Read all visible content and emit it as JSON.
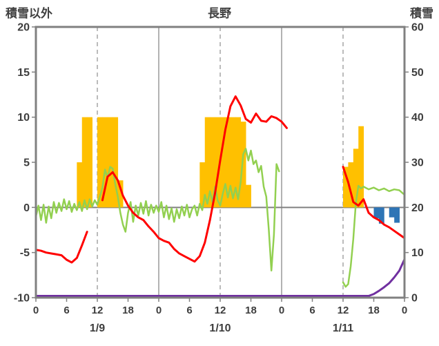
{
  "chart_data": {
    "type": "line",
    "title": "長野",
    "left_axis": {
      "title": "積雪以外",
      "min": -10,
      "max": 20,
      "ticks": [
        20,
        15,
        10,
        5,
        0,
        -5,
        -10
      ]
    },
    "right_axis": {
      "title": "積雪",
      "min": 0,
      "max": 60,
      "ticks": [
        60,
        50,
        40,
        30,
        20,
        10,
        0
      ]
    },
    "x_axis": {
      "hours_total": 72,
      "tick_every": 6,
      "tick_labels": [
        "0",
        "6",
        "12",
        "18",
        "0",
        "6",
        "12",
        "18",
        "0",
        "6",
        "12",
        "18",
        "0"
      ],
      "day_labels": [
        "1/9",
        "1/10",
        "1/11"
      ],
      "solid_gridlines_hours": [
        24,
        48
      ],
      "dashed_gridlines_hours": [
        12,
        36,
        60
      ]
    },
    "colors": {
      "border": "#808080",
      "grid": "#9e9e9e",
      "zero_line": "#808080",
      "text": "#3d3d3d",
      "background": "#ffffff"
    },
    "series": [
      {
        "id": "orange-bars",
        "type": "bar",
        "axis": "left",
        "color": "#FFC000",
        "bars": [
          [
            8,
            5
          ],
          [
            9,
            10
          ],
          [
            10,
            10
          ],
          [
            12,
            10
          ],
          [
            13,
            10
          ],
          [
            14,
            10
          ],
          [
            15,
            10
          ],
          [
            16,
            3
          ],
          [
            32,
            5
          ],
          [
            33,
            10
          ],
          [
            34,
            10
          ],
          [
            35,
            10
          ],
          [
            36,
            10
          ],
          [
            37,
            10
          ],
          [
            38,
            10
          ],
          [
            39,
            10
          ],
          [
            40,
            9.5
          ],
          [
            41,
            2.5
          ],
          [
            60,
            4.5
          ],
          [
            61,
            5
          ],
          [
            62,
            6.5
          ],
          [
            63,
            9
          ]
        ]
      },
      {
        "id": "blue-bars",
        "type": "bar",
        "axis": "left",
        "color": "#2E75B6",
        "bars": [
          [
            66,
            -1.2
          ],
          [
            67,
            -1.8
          ],
          [
            69,
            -1.1
          ],
          [
            70,
            -1.7
          ]
        ]
      },
      {
        "id": "green-line",
        "type": "line",
        "axis": "left",
        "color": "#92D050",
        "width": 2.5,
        "points": [
          [
            0,
            -1.0
          ],
          [
            0.5,
            0.2
          ],
          [
            1,
            -1.4
          ],
          [
            1.5,
            0.3
          ],
          [
            2,
            -1.7
          ],
          [
            2.5,
            0.1
          ],
          [
            3,
            -1.2
          ],
          [
            3.5,
            0.6
          ],
          [
            4,
            -0.6
          ],
          [
            4.5,
            0.5
          ],
          [
            5,
            -0.4
          ],
          [
            5.5,
            0.9
          ],
          [
            6,
            -0.2
          ],
          [
            6.5,
            0.7
          ],
          [
            7,
            -0.5
          ],
          [
            7.5,
            0.4
          ],
          [
            8,
            -0.3
          ],
          [
            8.5,
            0.6
          ],
          [
            9,
            -0.4
          ],
          [
            9.5,
            0.8
          ],
          [
            10,
            -0.2
          ],
          [
            10.5,
            0.9
          ],
          [
            11,
            0.1
          ],
          [
            11.5,
            0.8
          ],
          [
            12,
            0.3
          ],
          [
            12.5,
            1.2
          ],
          [
            13,
            2.2
          ],
          [
            13.5,
            4.2
          ],
          [
            14,
            3.3
          ],
          [
            14.5,
            4.5
          ],
          [
            15,
            4.3
          ],
          [
            15.5,
            2.6
          ],
          [
            16,
            1.2
          ],
          [
            16.5,
            -0.6
          ],
          [
            17,
            -1.9
          ],
          [
            17.5,
            -2.7
          ],
          [
            18,
            -0.6
          ],
          [
            18.5,
            0.6
          ],
          [
            19,
            -1.6
          ],
          [
            19.5,
            0.2
          ],
          [
            20,
            -0.9
          ],
          [
            20.5,
            0.5
          ],
          [
            21,
            -0.7
          ],
          [
            21.5,
            0.7
          ],
          [
            22,
            -0.9
          ],
          [
            22.5,
            0.3
          ],
          [
            23,
            -0.6
          ],
          [
            23.5,
            0.2
          ],
          [
            24,
            -0.5
          ],
          [
            24.5,
            0.6
          ],
          [
            25,
            -1.1
          ],
          [
            25.5,
            0.2
          ],
          [
            26,
            -1.3
          ],
          [
            26.5,
            -0.1
          ],
          [
            27,
            -1.6
          ],
          [
            27.5,
            -0.2
          ],
          [
            28,
            -1.2
          ],
          [
            28.5,
            0.1
          ],
          [
            29,
            -0.9
          ],
          [
            29.5,
            0.3
          ],
          [
            30,
            -1.1
          ],
          [
            30.5,
            -0.2
          ],
          [
            31,
            0.2
          ],
          [
            31.5,
            -0.9
          ],
          [
            32,
            0.4
          ],
          [
            32.5,
            -0.3
          ],
          [
            33,
            1.4
          ],
          [
            33.5,
            0.4
          ],
          [
            34,
            1.8
          ],
          [
            34.5,
            0.6
          ],
          [
            35,
            2.3
          ],
          [
            35.5,
            0.8
          ],
          [
            36,
            0.2
          ],
          [
            36.5,
            1.5
          ],
          [
            37,
            2.6
          ],
          [
            37.5,
            1.1
          ],
          [
            38,
            2.4
          ],
          [
            38.5,
            1.0
          ],
          [
            39,
            2.2
          ],
          [
            39.5,
            0.9
          ],
          [
            40,
            2.8
          ],
          [
            40.5,
            5.9
          ],
          [
            41,
            6.5
          ],
          [
            41.5,
            5.2
          ],
          [
            42,
            6.3
          ],
          [
            42.5,
            4.8
          ],
          [
            43,
            5.2
          ],
          [
            43.5,
            3.9
          ],
          [
            44,
            4.6
          ],
          [
            44.5,
            2.3
          ],
          [
            45,
            1.2
          ],
          [
            45.5,
            -2.5
          ],
          [
            46,
            -7.0
          ],
          [
            46.5,
            -3.0
          ],
          [
            47,
            4.8
          ],
          [
            47.5,
            4.0
          ],
          null,
          [
            60,
            -8.3
          ],
          [
            60.5,
            -8.8
          ],
          [
            61,
            -8.5
          ],
          [
            61.5,
            -6.5
          ],
          [
            62,
            -3.5
          ],
          [
            62.5,
            0.5
          ],
          [
            63,
            2.4
          ],
          [
            63.5,
            2.1
          ],
          [
            64,
            2.3
          ],
          [
            65,
            2.0
          ],
          [
            66,
            2.2
          ],
          [
            67,
            1.9
          ],
          [
            68,
            2.1
          ],
          [
            69,
            1.8
          ],
          [
            70,
            2.0
          ],
          [
            71,
            1.9
          ],
          [
            72,
            1.4
          ]
        ]
      },
      {
        "id": "red-line",
        "type": "line",
        "axis": "left",
        "color": "#FF0000",
        "width": 3,
        "points": [
          [
            0,
            -4.7
          ],
          [
            1,
            -4.8
          ],
          [
            2,
            -5.0
          ],
          [
            3,
            -5.1
          ],
          [
            4,
            -5.2
          ],
          [
            5,
            -5.3
          ],
          [
            6,
            -5.8
          ],
          [
            7,
            -6.1
          ],
          [
            8,
            -5.6
          ],
          [
            9,
            -4.2
          ],
          [
            10,
            -2.7
          ],
          null,
          [
            13,
            0.8
          ],
          [
            14,
            3.4
          ],
          [
            15,
            3.9
          ],
          [
            16,
            3.0
          ],
          [
            17,
            1.3
          ],
          [
            18,
            0.2
          ],
          [
            19,
            -0.6
          ],
          [
            20,
            -1.1
          ],
          [
            21,
            -1.4
          ],
          [
            22,
            -2.1
          ],
          [
            23,
            -2.7
          ],
          [
            24,
            -3.4
          ],
          [
            25,
            -3.7
          ],
          [
            26,
            -3.9
          ],
          [
            27,
            -4.6
          ],
          [
            28,
            -5.1
          ],
          [
            29,
            -5.4
          ],
          [
            30,
            -5.7
          ],
          [
            31,
            -6.0
          ],
          [
            32,
            -5.4
          ],
          [
            33,
            -3.9
          ],
          [
            34,
            -1.4
          ],
          [
            35,
            1.6
          ],
          [
            36,
            5.2
          ],
          [
            37,
            8.6
          ],
          [
            38,
            11.2
          ],
          [
            39,
            12.3
          ],
          [
            40,
            11.3
          ],
          [
            41,
            9.8
          ],
          [
            42,
            9.4
          ],
          [
            43,
            10.4
          ],
          [
            44,
            9.6
          ],
          [
            45,
            9.5
          ],
          [
            46,
            10.1
          ],
          [
            47,
            9.9
          ],
          [
            48,
            9.5
          ],
          [
            49,
            8.8
          ],
          null,
          [
            60,
            4.5
          ],
          [
            61,
            2.8
          ],
          [
            62,
            0.6
          ],
          [
            63,
            0.2
          ],
          [
            64,
            0.9
          ],
          [
            65,
            -0.6
          ],
          [
            66,
            -1.1
          ],
          [
            67,
            -1.4
          ],
          [
            68,
            -1.9
          ],
          [
            69,
            -2.2
          ],
          [
            70,
            -2.6
          ],
          [
            71,
            -3.0
          ],
          [
            72,
            -3.4
          ]
        ]
      },
      {
        "id": "purple-line",
        "type": "line",
        "axis": "right",
        "color": "#7030A0",
        "width": 3,
        "points": [
          [
            0,
            0
          ],
          [
            10,
            0
          ],
          [
            20,
            0
          ],
          [
            30,
            0
          ],
          [
            40,
            0
          ],
          [
            50,
            0
          ],
          [
            60,
            0
          ],
          [
            64,
            0
          ],
          [
            65,
            0.3
          ],
          [
            66,
            0.8
          ],
          [
            67,
            1.5
          ],
          [
            68,
            2.3
          ],
          [
            69,
            3.2
          ],
          [
            70,
            4.5
          ],
          [
            71,
            6.0
          ],
          [
            72,
            8.5
          ]
        ]
      }
    ]
  }
}
